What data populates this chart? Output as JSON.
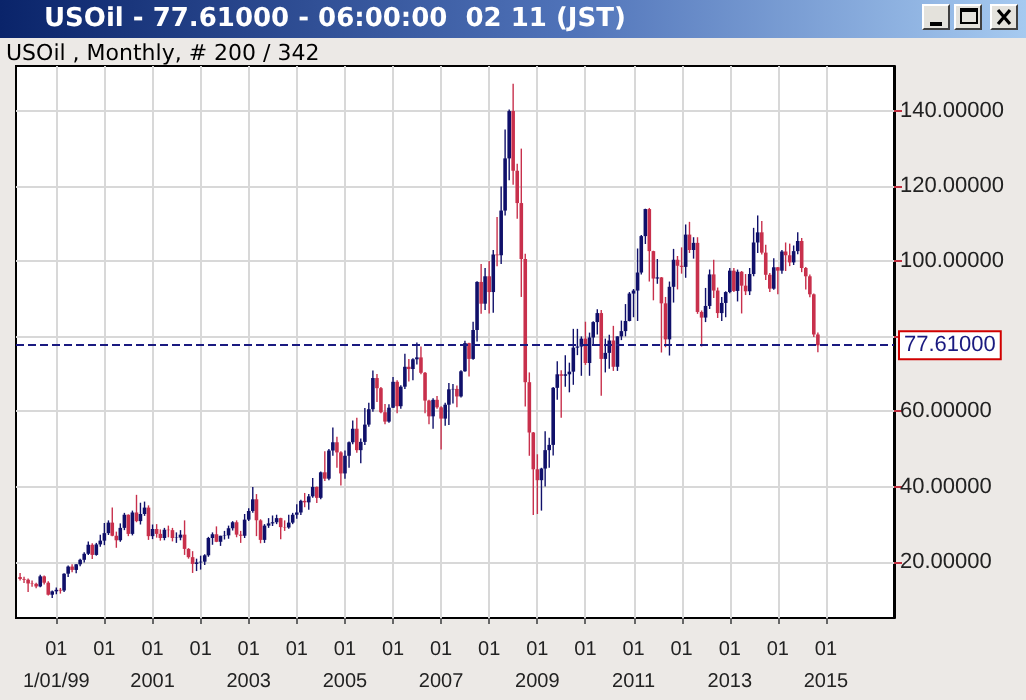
{
  "chart_data": {
    "type": "candlestick",
    "title": "USOil - 77.61000 - 06:00:00  02 11 (JST)",
    "subtitle": "USOil , Monthly, # 200 / 342",
    "x": [
      "1998-04",
      "1998-05",
      "1998-06",
      "1998-07",
      "1998-08",
      "1998-09",
      "1998-10",
      "1998-11",
      "1998-12",
      "1999-01",
      "1999-02",
      "1999-03",
      "1999-04",
      "1999-05",
      "1999-06",
      "1999-07",
      "1999-08",
      "1999-09",
      "1999-10",
      "1999-11",
      "1999-12",
      "2000-01",
      "2000-02",
      "2000-03",
      "2000-04",
      "2000-05",
      "2000-06",
      "2000-07",
      "2000-08",
      "2000-09",
      "2000-10",
      "2000-11",
      "2000-12",
      "2001-01",
      "2001-02",
      "2001-03",
      "2001-04",
      "2001-05",
      "2001-06",
      "2001-07",
      "2001-08",
      "2001-09",
      "2001-10",
      "2001-11",
      "2001-12",
      "2002-01",
      "2002-02",
      "2002-03",
      "2002-04",
      "2002-05",
      "2002-06",
      "2002-07",
      "2002-08",
      "2002-09",
      "2002-10",
      "2002-11",
      "2002-12",
      "2003-01",
      "2003-02",
      "2003-03",
      "2003-04",
      "2003-05",
      "2003-06",
      "2003-07",
      "2003-08",
      "2003-09",
      "2003-10",
      "2003-11",
      "2003-12",
      "2004-01",
      "2004-02",
      "2004-03",
      "2004-04",
      "2004-05",
      "2004-06",
      "2004-07",
      "2004-08",
      "2004-09",
      "2004-10",
      "2004-11",
      "2004-12",
      "2005-01",
      "2005-02",
      "2005-03",
      "2005-04",
      "2005-05",
      "2005-06",
      "2005-07",
      "2005-08",
      "2005-09",
      "2005-10",
      "2005-11",
      "2005-12",
      "2006-01",
      "2006-02",
      "2006-03",
      "2006-04",
      "2006-05",
      "2006-06",
      "2006-07",
      "2006-08",
      "2006-09",
      "2006-10",
      "2006-11",
      "2006-12",
      "2007-01",
      "2007-02",
      "2007-03",
      "2007-04",
      "2007-05",
      "2007-06",
      "2007-07",
      "2007-08",
      "2007-09",
      "2007-10",
      "2007-11",
      "2007-12",
      "2008-01",
      "2008-02",
      "2008-03",
      "2008-04",
      "2008-05",
      "2008-06",
      "2008-07",
      "2008-08",
      "2008-09",
      "2008-10",
      "2008-11",
      "2008-12",
      "2009-01",
      "2009-02",
      "2009-03",
      "2009-04",
      "2009-05",
      "2009-06",
      "2009-07",
      "2009-08",
      "2009-09",
      "2009-10",
      "2009-11",
      "2009-12",
      "2010-01",
      "2010-02",
      "2010-03",
      "2010-04",
      "2010-05",
      "2010-06",
      "2010-07",
      "2010-08",
      "2010-09",
      "2010-10",
      "2010-11",
      "2010-12",
      "2011-01",
      "2011-02",
      "2011-03",
      "2011-04",
      "2011-05",
      "2011-06",
      "2011-07",
      "2011-08",
      "2011-09",
      "2011-10",
      "2011-11",
      "2011-12",
      "2012-01",
      "2012-02",
      "2012-03",
      "2012-04",
      "2012-05",
      "2012-06",
      "2012-07",
      "2012-08",
      "2012-09",
      "2012-10",
      "2012-11",
      "2012-12",
      "2013-01",
      "2013-02",
      "2013-03",
      "2013-04",
      "2013-05",
      "2013-06",
      "2013-07",
      "2013-08",
      "2013-09",
      "2013-10",
      "2013-11",
      "2013-12",
      "2014-01",
      "2014-02",
      "2014-03",
      "2014-04",
      "2014-05",
      "2014-06",
      "2014-07",
      "2014-08",
      "2014-09",
      "2014-10",
      "2014-11"
    ],
    "ohlc": [
      [
        15.9,
        17.0,
        15.0,
        15.4
      ],
      [
        15.4,
        16.0,
        14.3,
        15.2
      ],
      [
        15.2,
        15.5,
        11.9,
        14.2
      ],
      [
        14.2,
        15.0,
        13.3,
        14.1
      ],
      [
        14.1,
        14.4,
        12.9,
        13.4
      ],
      [
        13.4,
        16.5,
        13.2,
        16.1
      ],
      [
        16.1,
        16.3,
        13.9,
        14.4
      ],
      [
        14.4,
        14.8,
        11.0,
        11.2
      ],
      [
        11.2,
        12.3,
        10.3,
        12.1
      ],
      [
        12.1,
        13.1,
        11.3,
        12.5
      ],
      [
        12.5,
        13.0,
        11.5,
        12.3
      ],
      [
        12.3,
        16.9,
        11.9,
        16.8
      ],
      [
        16.8,
        19.0,
        15.9,
        18.7
      ],
      [
        18.7,
        19.3,
        17.2,
        17.8
      ],
      [
        17.8,
        19.4,
        16.9,
        19.3
      ],
      [
        19.3,
        20.8,
        18.8,
        20.5
      ],
      [
        20.5,
        22.5,
        19.8,
        22.1
      ],
      [
        22.1,
        25.4,
        21.8,
        24.5
      ],
      [
        24.5,
        24.9,
        20.7,
        21.8
      ],
      [
        21.8,
        25.0,
        21.6,
        24.6
      ],
      [
        24.6,
        27.2,
        24.0,
        25.6
      ],
      [
        25.6,
        30.3,
        24.4,
        27.6
      ],
      [
        27.6,
        31.0,
        27.1,
        30.4
      ],
      [
        30.4,
        34.4,
        26.8,
        26.9
      ],
      [
        26.9,
        28.0,
        23.7,
        25.7
      ],
      [
        25.7,
        30.2,
        25.3,
        29.0
      ],
      [
        29.0,
        33.0,
        28.4,
        32.5
      ],
      [
        32.5,
        32.6,
        26.8,
        27.4
      ],
      [
        27.4,
        33.6,
        27.0,
        33.1
      ],
      [
        33.1,
        37.8,
        30.5,
        30.8
      ],
      [
        30.8,
        35.7,
        29.9,
        32.7
      ],
      [
        32.7,
        36.0,
        32.2,
        34.4
      ],
      [
        34.4,
        35.0,
        25.8,
        26.8
      ],
      [
        26.8,
        29.9,
        26.0,
        28.7
      ],
      [
        28.7,
        30.0,
        26.4,
        27.4
      ],
      [
        27.4,
        28.6,
        25.6,
        26.3
      ],
      [
        26.3,
        29.0,
        25.7,
        28.5
      ],
      [
        28.5,
        29.6,
        26.5,
        28.4
      ],
      [
        28.4,
        29.0,
        25.4,
        26.3
      ],
      [
        26.3,
        27.8,
        25.0,
        26.4
      ],
      [
        26.4,
        28.4,
        25.7,
        27.2
      ],
      [
        27.2,
        31.0,
        21.8,
        23.4
      ],
      [
        23.4,
        23.6,
        20.8,
        21.2
      ],
      [
        21.2,
        22.8,
        17.0,
        19.4
      ],
      [
        19.4,
        20.8,
        17.5,
        19.8
      ],
      [
        19.8,
        21.6,
        17.9,
        20.0
      ],
      [
        20.0,
        22.0,
        19.1,
        21.7
      ],
      [
        21.7,
        26.6,
        21.3,
        26.3
      ],
      [
        26.3,
        27.8,
        24.5,
        27.3
      ],
      [
        27.3,
        29.4,
        25.2,
        25.3
      ],
      [
        25.3,
        26.9,
        24.2,
        26.9
      ],
      [
        26.9,
        28.2,
        25.9,
        27.0
      ],
      [
        27.0,
        29.6,
        26.1,
        28.9
      ],
      [
        28.9,
        30.8,
        28.3,
        30.5
      ],
      [
        30.5,
        31.0,
        26.5,
        27.2
      ],
      [
        27.2,
        28.2,
        25.0,
        26.9
      ],
      [
        26.9,
        32.7,
        26.3,
        31.2
      ],
      [
        31.2,
        34.2,
        30.8,
        33.5
      ],
      [
        33.5,
        39.9,
        33.0,
        36.6
      ],
      [
        36.6,
        38.0,
        26.8,
        31.0
      ],
      [
        31.0,
        31.3,
        24.9,
        25.8
      ],
      [
        25.8,
        30.0,
        25.0,
        29.6
      ],
      [
        29.6,
        31.6,
        29.0,
        30.2
      ],
      [
        30.2,
        32.3,
        29.5,
        30.5
      ],
      [
        30.5,
        32.5,
        30.0,
        31.6
      ],
      [
        31.6,
        31.7,
        26.0,
        29.2
      ],
      [
        29.2,
        31.0,
        28.2,
        29.1
      ],
      [
        29.1,
        32.5,
        28.8,
        30.4
      ],
      [
        30.4,
        33.0,
        30.0,
        32.5
      ],
      [
        32.5,
        35.3,
        31.4,
        33.1
      ],
      [
        33.1,
        36.5,
        32.4,
        36.2
      ],
      [
        36.2,
        38.3,
        34.5,
        35.8
      ],
      [
        35.8,
        38.0,
        33.8,
        37.4
      ],
      [
        37.4,
        42.3,
        37.0,
        39.9
      ],
      [
        39.9,
        40.0,
        35.6,
        37.0
      ],
      [
        37.0,
        44.0,
        36.6,
        43.8
      ],
      [
        43.8,
        49.4,
        41.5,
        42.1
      ],
      [
        42.1,
        50.0,
        41.7,
        49.6
      ],
      [
        49.6,
        55.7,
        48.2,
        51.8
      ],
      [
        51.8,
        53.3,
        45.0,
        49.1
      ],
      [
        49.1,
        49.4,
        40.3,
        43.5
      ],
      [
        43.5,
        49.6,
        42.1,
        48.2
      ],
      [
        48.2,
        52.0,
        45.0,
        51.8
      ],
      [
        51.8,
        57.6,
        51.3,
        55.4
      ],
      [
        55.4,
        58.3,
        49.0,
        49.7
      ],
      [
        49.7,
        52.8,
        46.2,
        51.9
      ],
      [
        51.9,
        60.9,
        51.1,
        56.5
      ],
      [
        56.5,
        62.3,
        55.9,
        60.6
      ],
      [
        60.6,
        70.9,
        59.9,
        68.9
      ],
      [
        68.9,
        70.0,
        62.5,
        66.2
      ],
      [
        66.2,
        66.5,
        59.5,
        59.8
      ],
      [
        59.8,
        62.0,
        56.6,
        57.3
      ],
      [
        57.3,
        61.9,
        57.0,
        61.0
      ],
      [
        61.0,
        69.2,
        60.9,
        67.9
      ],
      [
        67.9,
        68.3,
        59.5,
        61.4
      ],
      [
        61.4,
        67.0,
        60.7,
        66.6
      ],
      [
        66.6,
        75.4,
        66.0,
        71.9
      ],
      [
        71.9,
        74.0,
        68.0,
        71.3
      ],
      [
        71.3,
        74.2,
        68.3,
        73.9
      ],
      [
        73.9,
        78.4,
        72.5,
        74.4
      ],
      [
        74.4,
        77.3,
        69.9,
        70.3
      ],
      [
        70.3,
        70.5,
        59.5,
        62.9
      ],
      [
        62.9,
        63.1,
        56.6,
        58.7
      ],
      [
        58.7,
        63.5,
        55.4,
        63.1
      ],
      [
        63.1,
        64.1,
        60.7,
        61.1
      ],
      [
        61.1,
        61.4,
        49.9,
        58.1
      ],
      [
        58.1,
        62.3,
        56.2,
        61.8
      ],
      [
        61.8,
        67.6,
        56.4,
        65.9
      ],
      [
        65.9,
        67.3,
        62.1,
        66.0
      ],
      [
        66.0,
        66.9,
        61.1,
        64.0
      ],
      [
        64.0,
        71.0,
        63.7,
        70.7
      ],
      [
        70.7,
        78.8,
        70.6,
        78.2
      ],
      [
        78.2,
        78.3,
        69.3,
        74.0
      ],
      [
        74.0,
        83.9,
        73.8,
        81.7
      ],
      [
        81.7,
        94.7,
        78.6,
        94.5
      ],
      [
        94.5,
        99.3,
        86.0,
        88.7
      ],
      [
        88.7,
        98.2,
        87.0,
        96.0
      ],
      [
        96.0,
        100.1,
        86.1,
        91.8
      ],
      [
        91.8,
        103.0,
        86.3,
        101.8
      ],
      [
        101.8,
        111.8,
        98.7,
        101.6
      ],
      [
        101.6,
        119.9,
        99.3,
        113.5
      ],
      [
        113.5,
        135.1,
        112.2,
        127.4
      ],
      [
        127.4,
        140.4,
        121.6,
        140.0
      ],
      [
        140.0,
        147.3,
        120.4,
        124.1
      ],
      [
        124.1,
        126.0,
        111.3,
        115.5
      ],
      [
        115.5,
        130.0,
        90.5,
        100.6
      ],
      [
        100.6,
        102.0,
        61.3,
        67.8
      ],
      [
        67.8,
        70.4,
        48.2,
        54.4
      ],
      [
        54.4,
        54.5,
        32.4,
        44.6
      ],
      [
        44.6,
        48.6,
        32.7,
        41.7
      ],
      [
        41.7,
        45.0,
        33.6,
        44.8
      ],
      [
        44.8,
        54.7,
        40.0,
        49.7
      ],
      [
        49.7,
        53.0,
        45.0,
        51.1
      ],
      [
        51.1,
        66.5,
        48.3,
        66.3
      ],
      [
        66.3,
        73.4,
        63.1,
        69.9
      ],
      [
        69.9,
        71.0,
        58.3,
        69.5
      ],
      [
        69.5,
        75.0,
        66.6,
        69.9
      ],
      [
        69.9,
        73.0,
        65.1,
        70.6
      ],
      [
        70.6,
        82.0,
        67.1,
        77.0
      ],
      [
        77.0,
        82.0,
        75.0,
        77.3
      ],
      [
        77.3,
        80.0,
        69.5,
        79.4
      ],
      [
        79.4,
        83.9,
        72.4,
        72.9
      ],
      [
        72.9,
        81.0,
        69.5,
        79.7
      ],
      [
        79.7,
        84.0,
        77.6,
        83.8
      ],
      [
        83.8,
        87.2,
        80.5,
        86.2
      ],
      [
        86.2,
        87.0,
        64.2,
        74.0
      ],
      [
        74.0,
        79.4,
        70.4,
        75.6
      ],
      [
        75.6,
        80.4,
        71.4,
        78.9
      ],
      [
        78.9,
        82.8,
        70.8,
        71.9
      ],
      [
        71.9,
        80.0,
        70.8,
        80.0
      ],
      [
        80.0,
        84.2,
        79.0,
        81.4
      ],
      [
        81.4,
        88.6,
        80.0,
        84.1
      ],
      [
        84.1,
        91.8,
        84.0,
        91.4
      ],
      [
        91.4,
        92.6,
        85.1,
        92.2
      ],
      [
        92.2,
        103.4,
        84.1,
        97.0
      ],
      [
        97.0,
        107.0,
        96.5,
        106.7
      ],
      [
        106.7,
        114.0,
        104.6,
        113.9
      ],
      [
        113.9,
        114.2,
        94.6,
        102.7
      ],
      [
        102.7,
        102.8,
        89.6,
        95.4
      ],
      [
        95.4,
        100.6,
        94.0,
        95.7
      ],
      [
        95.7,
        95.8,
        75.7,
        88.8
      ],
      [
        88.8,
        90.5,
        77.1,
        79.2
      ],
      [
        79.2,
        94.6,
        74.9,
        93.2
      ],
      [
        93.2,
        103.3,
        89.0,
        100.4
      ],
      [
        100.4,
        101.4,
        92.5,
        98.8
      ],
      [
        98.8,
        103.7,
        96.7,
        98.5
      ],
      [
        98.5,
        109.8,
        95.6,
        107.1
      ],
      [
        107.1,
        110.5,
        102.2,
        103.0
      ],
      [
        103.0,
        106.4,
        100.7,
        104.9
      ],
      [
        104.9,
        106.4,
        86.0,
        86.5
      ],
      [
        86.5,
        86.9,
        77.3,
        85.0
      ],
      [
        85.0,
        92.9,
        83.8,
        88.1
      ],
      [
        88.1,
        97.8,
        87.3,
        96.5
      ],
      [
        96.5,
        100.4,
        90.2,
        92.2
      ],
      [
        92.2,
        93.0,
        84.9,
        86.2
      ],
      [
        86.2,
        90.5,
        84.1,
        88.9
      ],
      [
        88.9,
        92.0,
        85.1,
        91.8
      ],
      [
        91.8,
        98.2,
        91.5,
        97.5
      ],
      [
        97.5,
        98.2,
        91.8,
        92.1
      ],
      [
        92.1,
        97.8,
        89.3,
        97.2
      ],
      [
        97.2,
        97.4,
        86.1,
        93.5
      ],
      [
        93.5,
        96.6,
        91.0,
        92.0
      ],
      [
        92.0,
        98.2,
        91.0,
        96.6
      ],
      [
        96.6,
        108.9,
        96.0,
        105.0
      ],
      [
        105.0,
        112.2,
        102.2,
        107.7
      ],
      [
        107.7,
        110.7,
        101.8,
        102.3
      ],
      [
        102.3,
        104.4,
        95.0,
        96.4
      ],
      [
        96.4,
        96.9,
        91.8,
        92.7
      ],
      [
        92.7,
        100.8,
        92.4,
        98.4
      ],
      [
        98.4,
        98.5,
        91.2,
        97.5
      ],
      [
        97.5,
        103.0,
        96.7,
        102.6
      ],
      [
        102.6,
        105.0,
        97.4,
        101.6
      ],
      [
        101.6,
        104.7,
        98.7,
        99.7
      ],
      [
        99.7,
        104.2,
        99.0,
        102.7
      ],
      [
        102.7,
        107.7,
        101.9,
        105.4
      ],
      [
        105.4,
        106.2,
        97.1,
        98.2
      ],
      [
        98.2,
        98.5,
        92.5,
        96.0
      ],
      [
        96.0,
        96.5,
        90.4,
        91.2
      ],
      [
        91.2,
        91.4,
        79.8,
        80.5
      ],
      [
        80.5,
        81.0,
        75.8,
        77.61
      ]
    ],
    "xlim": [
      "1998-03",
      "2016-06"
    ],
    "xticks": [
      {
        "value": "1999-01",
        "label": "01\n1/01/99"
      },
      {
        "value": "2000-01",
        "label": "01"
      },
      {
        "value": "2001-01",
        "label": "01\n2001"
      },
      {
        "value": "2002-01",
        "label": "01"
      },
      {
        "value": "2003-01",
        "label": "01\n2003"
      },
      {
        "value": "2004-01",
        "label": "01"
      },
      {
        "value": "2005-01",
        "label": "01\n2005"
      },
      {
        "value": "2006-01",
        "label": "01"
      },
      {
        "value": "2007-01",
        "label": "01\n2007"
      },
      {
        "value": "2008-01",
        "label": "01"
      },
      {
        "value": "2009-01",
        "label": "01\n2009"
      },
      {
        "value": "2010-01",
        "label": "01"
      },
      {
        "value": "2011-01",
        "label": "01\n2011"
      },
      {
        "value": "2012-01",
        "label": "01"
      },
      {
        "value": "2013-01",
        "label": "01\n2013"
      },
      {
        "value": "2014-01",
        "label": "01"
      },
      {
        "value": "2015-01",
        "label": "01\n2015"
      }
    ],
    "ylim": [
      5,
      152
    ],
    "yticks": [
      {
        "value": 20,
        "label": "20.00000"
      },
      {
        "value": 40,
        "label": "40.00000"
      },
      {
        "value": 60,
        "label": "60.00000"
      },
      {
        "value": 80,
        "label": null
      },
      {
        "value": 100,
        "label": "100.00000"
      },
      {
        "value": 120,
        "label": "120.00000"
      },
      {
        "value": 140,
        "label": "140.00000"
      }
    ],
    "grid": true,
    "ref_lines": [
      {
        "axis": "y",
        "value": 77.61,
        "label": "77.61000",
        "color": "#1a1a80",
        "line_style": "dashed"
      }
    ]
  }
}
